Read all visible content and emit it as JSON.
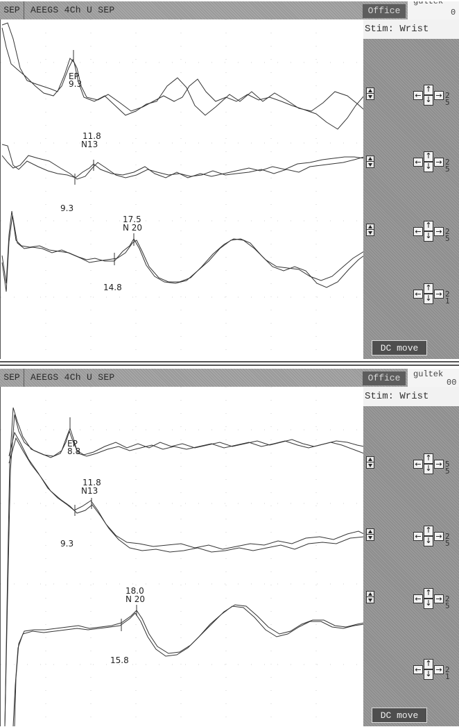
{
  "screens": [
    {
      "mode": "SEP",
      "protocol": "AEEGS 4Ch U SEP",
      "office": "Office",
      "user_line1": "gultek",
      "user_line2": "0",
      "stim": "Stim: Wrist",
      "dc_move": "DC move",
      "labels": {
        "ep": "EP",
        "n13": "N13",
        "n20": "N 20"
      },
      "latencies": {
        "ep": "9.3",
        "n13_peak": "11.8",
        "n13_onset": "9.3",
        "n20_peak": "17.5",
        "n20_onset": "14.8"
      },
      "channel_values": [
        [
          "2",
          "5"
        ],
        [
          "2",
          "5"
        ],
        [
          "2",
          "5"
        ],
        [
          "2",
          "1"
        ]
      ]
    },
    {
      "mode": "SEP",
      "protocol": "AEEGS 4Ch U SEP",
      "office": "Office",
      "user_line1": "gultek",
      "user_line2": "00",
      "stim": "Stim: Wrist",
      "dc_move": "DC move",
      "labels": {
        "ep": "EP",
        "n13": "N13",
        "n20": "N 20"
      },
      "latencies": {
        "ep": "8.8",
        "n13_peak": "11.8",
        "n13_onset": "9.3",
        "n20_peak": "18.0",
        "n20_onset": "15.8"
      },
      "channel_values": [
        [
          "5",
          "5"
        ],
        [
          "2",
          "5"
        ],
        [
          "2",
          "5"
        ],
        [
          "2",
          "1"
        ]
      ]
    }
  ],
  "icons": {
    "up_down": "up-down-arrow-icon",
    "cross": "four-way-arrow-icon"
  }
}
